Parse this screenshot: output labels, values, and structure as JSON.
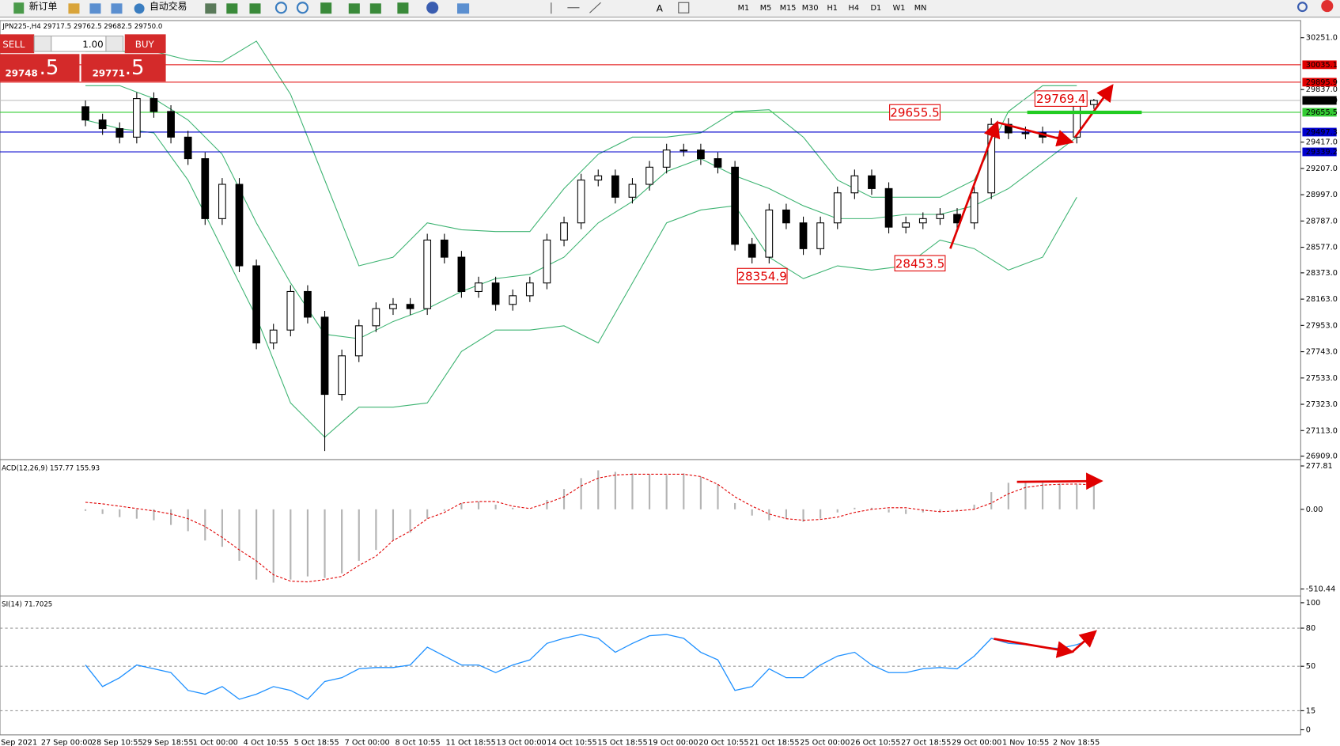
{
  "toolbar": {
    "buttons": [
      "新订单",
      "自动交易"
    ],
    "timeframes": [
      "M1",
      "M5",
      "M15",
      "M30",
      "H1",
      "H4",
      "D1",
      "W1",
      "MN"
    ]
  },
  "trade_panel": {
    "sell_label": "SELL",
    "buy_label": "BUY",
    "volume": "1.00",
    "sell_price_main": "29748",
    "sell_price_big": ".5",
    "buy_price_main": "29771",
    "buy_price_big": ".5"
  },
  "time_axis": [
    "Sep 2021",
    "27 Sep 00:00",
    "28 Sep 10:55",
    "29 Sep 18:55",
    "1 Oct 00:00",
    "4 Oct 10:55",
    "5 Oct 18:55",
    "7 Oct 00:00",
    "8 Oct 10:55",
    "11 Oct 18:55",
    "13 Oct 00:00",
    "14 Oct 10:55",
    "15 Oct 18:55",
    "19 Oct 00:00",
    "20 Oct 10:55",
    "21 Oct 18:55",
    "25 Oct 00:00",
    "26 Oct 10:55",
    "27 Oct 18:55",
    "29 Oct 00:00",
    "1 Nov 10:55",
    "2 Nov 18:55"
  ],
  "chart_data": [
    {
      "type": "candlestick",
      "header": "JPN225-,H4  29717.5 29762.5 29682.5 29750.0",
      "open": [
        29700,
        29594,
        29525,
        29457,
        29765,
        29662,
        29457,
        29285,
        28806,
        29080,
        28429,
        27813,
        27916,
        28224,
        28019,
        27402,
        27710,
        27950,
        28087,
        28121,
        28087,
        28635,
        28498,
        28224,
        28292,
        28121,
        28190,
        28292,
        28635,
        28772,
        29114,
        29148,
        28977,
        29080,
        29217,
        29354,
        29354,
        29285,
        29217,
        28601,
        28498,
        28875,
        28772,
        28566,
        28772,
        29012,
        29148,
        29046,
        28738,
        28772,
        28806,
        28840,
        28772,
        29012,
        29559,
        29491,
        29491,
        29457,
        29457,
        29717.5
      ],
      "high": [
        29750,
        29644,
        29575,
        29815,
        29815,
        29712,
        29507,
        29335,
        29130,
        29130,
        28479,
        27966,
        28274,
        28274,
        28069,
        27760,
        28000,
        28137,
        28171,
        28171,
        28685,
        28685,
        28548,
        28342,
        28342,
        28240,
        28342,
        28685,
        28822,
        29164,
        29198,
        29198,
        29130,
        29267,
        29404,
        29404,
        29404,
        29335,
        29267,
        28651,
        28925,
        28925,
        28822,
        28822,
        29062,
        29198,
        29198,
        29096,
        28822,
        28856,
        28890,
        28890,
        29062,
        29609,
        29609,
        29541,
        29541,
        29507,
        29740,
        29762.5
      ],
      "low": [
        29544,
        29475,
        29407,
        29407,
        29612,
        29407,
        29235,
        28756,
        28756,
        28379,
        27763,
        27763,
        27866,
        27969,
        26950,
        27352,
        27660,
        27900,
        28037,
        28037,
        28037,
        28448,
        28174,
        28174,
        28071,
        28071,
        28140,
        28242,
        28585,
        28722,
        29064,
        28927,
        28927,
        29030,
        29167,
        29304,
        29235,
        29167,
        28551,
        28448,
        28448,
        28722,
        28516,
        28516,
        28722,
        28962,
        28996,
        28688,
        28688,
        28722,
        28756,
        28722,
        28722,
        28962,
        29441,
        29441,
        29407,
        29407,
        29407,
        29682.5
      ],
      "close": [
        29594,
        29525,
        29457,
        29765,
        29662,
        29457,
        29285,
        28806,
        29080,
        28429,
        27813,
        27916,
        28224,
        28019,
        27402,
        27710,
        27950,
        28087,
        28121,
        28087,
        28635,
        28498,
        28224,
        28292,
        28121,
        28190,
        28292,
        28635,
        28772,
        29114,
        29148,
        28977,
        29080,
        29217,
        29354,
        29354,
        29285,
        29217,
        28601,
        28498,
        28875,
        28772,
        28566,
        28772,
        29012,
        29148,
        29046,
        28738,
        28772,
        28806,
        28840,
        28772,
        29012,
        29559,
        29491,
        29491,
        29457,
        29457,
        29717.5,
        29750
      ],
      "series_x": [
        0,
        2,
        4,
        6,
        8,
        10,
        12,
        14,
        16,
        18,
        20,
        22,
        24,
        26,
        28,
        30,
        32,
        34,
        36,
        38,
        40,
        42,
        44,
        46,
        48,
        50,
        52,
        54,
        56,
        58
      ],
      "series": [
        {
          "color": "#3cb371",
          "values": [
            30141,
            30141,
            30141,
            30073,
            30059,
            30224,
            29799,
            29114,
            28429,
            28498,
            28772,
            28717,
            28703,
            28703,
            29046,
            29320,
            29457,
            29457,
            29491,
            29662,
            29676,
            29457,
            29114,
            28977,
            28977,
            28977,
            29114,
            29662,
            29868,
            29868
          ]
        },
        {
          "color": "#3cb371",
          "values": [
            29868,
            29868,
            29765,
            29594,
            29320,
            28772,
            28292,
            27882,
            27847,
            27984,
            28087,
            28224,
            28327,
            28361,
            28498,
            28772,
            28943,
            29183,
            29285,
            29148,
            29046,
            28909,
            28806,
            28806,
            28840,
            28840,
            28909,
            29046,
            29251,
            29457
          ]
        },
        {
          "color": "#3cb371",
          "values": [
            29594,
            29525,
            29491,
            29114,
            28566,
            28019,
            27334,
            27060,
            27300,
            27300,
            27334,
            27745,
            27916,
            27916,
            27950,
            27813,
            28292,
            28772,
            28875,
            28909,
            28498,
            28327,
            28429,
            28395,
            28429,
            28635,
            28566,
            28395,
            28498,
            28977
          ]
        }
      ],
      "ylim": [
        26888,
        30388
      ],
      "yticks": [
        {
          "value": 30251,
          "label": "30251.0"
        },
        {
          "value": 29837,
          "label": "29837.0"
        },
        {
          "value": 29417,
          "label": "29417.0"
        },
        {
          "value": 29207,
          "label": "29207.0"
        },
        {
          "value": 28997,
          "label": "28997.0"
        },
        {
          "value": 28787,
          "label": "28787.0"
        },
        {
          "value": 28577,
          "label": "28577.0"
        },
        {
          "value": 28373,
          "label": "28373.0"
        },
        {
          "value": 28163,
          "label": "28163.0"
        },
        {
          "value": 27953,
          "label": "27953.0"
        },
        {
          "value": 27743,
          "label": "27743.0"
        },
        {
          "value": 27533,
          "label": "27533.0"
        },
        {
          "value": 27323,
          "label": "27323.0"
        },
        {
          "value": 27113,
          "label": "27113.0"
        },
        {
          "value": 26909,
          "label": "26909.0"
        }
      ],
      "levels": [
        {
          "value": 30035.1,
          "label": "30035.1",
          "color": "#e00000",
          "label_fill": "#e00000"
        },
        {
          "value": 29895.9,
          "label": "29895.9",
          "color": "#e00000",
          "label_fill": "#e00000"
        },
        {
          "value": 29750,
          "label": "29750.0",
          "color": "#c0c0c0",
          "label_fill": "#000000"
        },
        {
          "value": 29655.5,
          "label": "29655.5",
          "color": "#33cc33",
          "label_fill": "#33cc33"
        },
        {
          "value": 29497.3,
          "label": "29497.3",
          "color": "#0000cc",
          "label_fill": "#0000cc"
        },
        {
          "value": 29339.2,
          "label": "29339.2",
          "color": "#0000cc",
          "label_fill": "#0000cc"
        }
      ],
      "price_labels": [
        29655.5,
        29769.4,
        28354.9,
        28453.5
      ]
    },
    {
      "type": "macd",
      "label": "ACD(12,26,9) 157.77 155.93",
      "histogram": [
        -10,
        -30,
        -50,
        -60,
        -70,
        -100,
        -140,
        -200,
        -240,
        -330,
        -450,
        -470,
        -450,
        -430,
        -440,
        -410,
        -330,
        -260,
        -200,
        -150,
        -60,
        -10,
        40,
        50,
        30,
        10,
        0,
        60,
        130,
        200,
        250,
        240,
        230,
        225,
        220,
        230,
        210,
        160,
        40,
        -40,
        -70,
        -60,
        -80,
        -60,
        -20,
        10,
        10,
        -20,
        -30,
        -20,
        -20,
        -10,
        30,
        110,
        170,
        175,
        170,
        165,
        160,
        157.77
      ],
      "signal": [
        45,
        35,
        20,
        5,
        -10,
        -30,
        -60,
        -110,
        -180,
        -260,
        -330,
        -420,
        -460,
        -465,
        -450,
        -430,
        -360,
        -300,
        -200,
        -140,
        -60,
        -20,
        40,
        50,
        50,
        20,
        5,
        40,
        80,
        150,
        200,
        220,
        225,
        225,
        225,
        225,
        210,
        160,
        80,
        20,
        -30,
        -60,
        -70,
        -65,
        -50,
        -20,
        0,
        10,
        10,
        -5,
        -15,
        -10,
        0,
        40,
        100,
        140,
        155,
        160,
        162,
        155.93
      ],
      "histogram_color": "#b4b4b4",
      "signal_color": "#e00000",
      "ylim": [
        -544,
        313
      ],
      "yticks": [
        {
          "value": 277.81,
          "label": "277.81"
        },
        {
          "value": 0,
          "label": "0.00"
        },
        {
          "value": -510.44,
          "label": "-510.44"
        }
      ]
    },
    {
      "type": "line",
      "label": "SI(14) 71.7025",
      "color": "#1e90ff",
      "values": [
        51,
        34,
        41,
        51,
        48,
        45,
        31,
        28,
        34,
        24,
        28,
        34,
        31,
        24,
        38,
        41,
        48,
        49,
        49,
        51,
        65,
        58,
        51,
        51,
        45,
        51,
        55,
        68,
        72,
        75,
        72,
        61,
        68,
        74,
        75,
        72,
        61,
        55,
        31,
        34,
        48,
        41,
        41,
        51,
        58,
        61,
        51,
        45,
        45,
        48,
        49,
        48,
        58,
        72,
        68,
        67,
        65,
        64,
        67,
        71.7025
      ],
      "ylim": [
        -4,
        104
      ],
      "yticks": [
        100,
        80,
        50,
        15,
        0
      ],
      "levels": [
        80,
        50,
        15
      ]
    }
  ]
}
